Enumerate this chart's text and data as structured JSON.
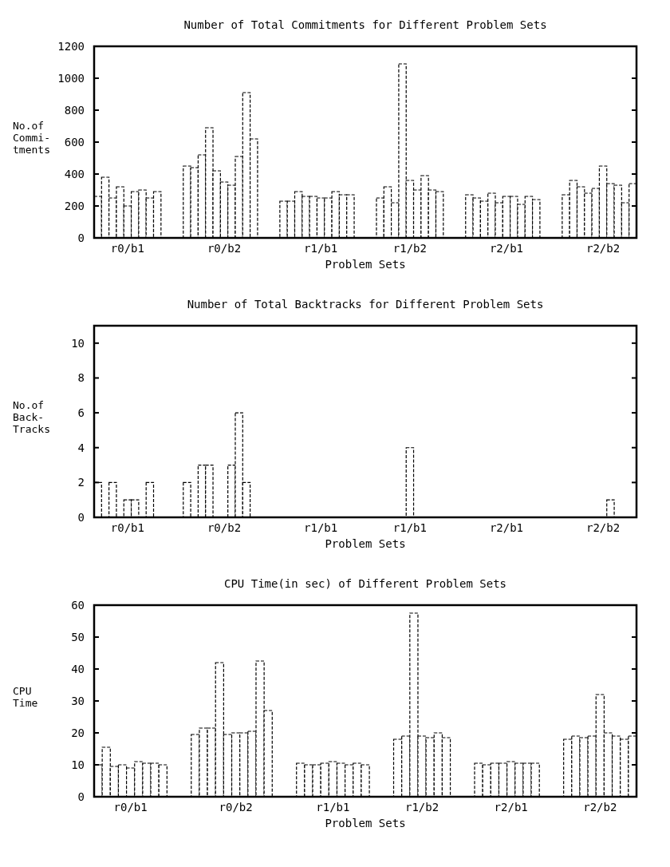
{
  "chart_data": [
    {
      "type": "bar",
      "title": "Number of Total Commitments for Different Problem Sets",
      "xlabel": "Problem Sets",
      "ylabel": "No.of\nCommi-\ntments",
      "color": "#000000",
      "ylim": [
        0,
        1200
      ],
      "yticks": [
        0,
        200,
        400,
        600,
        800,
        1000,
        1200
      ],
      "categories": [
        null,
        null,
        null,
        null,
        "r0/b1",
        null,
        null,
        null,
        null,
        null,
        null,
        null,
        null,
        null,
        null,
        null,
        null,
        "r0/b2",
        null,
        null,
        null,
        null,
        null,
        null,
        null,
        null,
        null,
        null,
        null,
        null,
        "r1/b1",
        null,
        null,
        null,
        null,
        null,
        null,
        null,
        null,
        null,
        null,
        null,
        "r1/b2",
        null,
        null,
        null,
        null,
        null,
        null,
        null,
        null,
        null,
        null,
        null,
        null,
        "r2/b1",
        null,
        null,
        null,
        null,
        null,
        null,
        null,
        null,
        null,
        null,
        null,
        null,
        "r2/b2",
        null,
        null,
        null,
        null
      ],
      "values": [
        260,
        380,
        250,
        320,
        200,
        290,
        300,
        250,
        290,
        null,
        null,
        null,
        450,
        440,
        520,
        690,
        420,
        350,
        330,
        510,
        910,
        620,
        null,
        null,
        null,
        230,
        230,
        290,
        260,
        260,
        250,
        250,
        290,
        270,
        270,
        null,
        null,
        null,
        250,
        320,
        220,
        1090,
        360,
        300,
        390,
        300,
        290,
        null,
        null,
        null,
        270,
        250,
        230,
        280,
        220,
        260,
        260,
        210,
        260,
        240,
        null,
        null,
        null,
        270,
        360,
        320,
        280,
        310,
        450,
        340,
        330,
        220,
        340
      ]
    },
    {
      "type": "bar",
      "title": "Number of Total Backtracks for Different Problem Sets",
      "xlabel": "Problem Sets",
      "ylabel": "No.of\nBack-\nTracks",
      "color": "#000000",
      "ylim": [
        0,
        11
      ],
      "yticks": [
        0,
        2,
        4,
        6,
        8,
        10
      ],
      "categories": [
        null,
        null,
        null,
        null,
        "r0/b1",
        null,
        null,
        null,
        null,
        null,
        null,
        null,
        null,
        null,
        null,
        null,
        null,
        "r0/b2",
        null,
        null,
        null,
        null,
        null,
        null,
        null,
        null,
        null,
        null,
        null,
        null,
        "r1/b1",
        null,
        null,
        null,
        null,
        null,
        null,
        null,
        null,
        null,
        null,
        null,
        "r1/b1",
        null,
        null,
        null,
        null,
        null,
        null,
        null,
        null,
        null,
        null,
        null,
        null,
        "r2/b1",
        null,
        null,
        null,
        null,
        null,
        null,
        null,
        null,
        null,
        null,
        null,
        null,
        "r2/b2",
        null,
        null,
        null,
        null
      ],
      "values": [
        2,
        0,
        2,
        0,
        1,
        1,
        0,
        2,
        0,
        null,
        null,
        null,
        2,
        0,
        3,
        3,
        0,
        0,
        3,
        6,
        2,
        0,
        null,
        null,
        null,
        0,
        0,
        0,
        0,
        0,
        0,
        0,
        0,
        0,
        0,
        null,
        null,
        null,
        0,
        0,
        0,
        0,
        4,
        0,
        0,
        0,
        0,
        null,
        null,
        null,
        0,
        0,
        0,
        0,
        0,
        0,
        0,
        0,
        0,
        0,
        null,
        null,
        null,
        0,
        0,
        0,
        0,
        0,
        0,
        1,
        0,
        0,
        0
      ]
    },
    {
      "type": "bar",
      "title": "CPU Time(in sec) of Different Problem Sets",
      "xlabel": "Problem Sets",
      "ylabel": "CPU\nTime",
      "color": "#000000",
      "ylim": [
        0,
        60
      ],
      "yticks": [
        0,
        10,
        20,
        30,
        40,
        50,
        60
      ],
      "categories": [
        null,
        null,
        null,
        null,
        "r0/b1",
        null,
        null,
        null,
        null,
        null,
        null,
        null,
        null,
        null,
        null,
        null,
        null,
        "r0/b2",
        null,
        null,
        null,
        null,
        null,
        null,
        null,
        null,
        null,
        null,
        null,
        "r1/b1",
        null,
        null,
        null,
        null,
        null,
        null,
        null,
        null,
        null,
        null,
        "r1/b2",
        null,
        null,
        null,
        null,
        null,
        null,
        null,
        null,
        null,
        null,
        "r2/b1",
        null,
        null,
        null,
        null,
        null,
        null,
        null,
        null,
        null,
        null,
        "r2/b2",
        null,
        null,
        null,
        null
      ],
      "values": [
        10,
        15.5,
        9.5,
        10,
        9,
        11,
        10.5,
        10.5,
        10,
        null,
        null,
        null,
        19.5,
        21.5,
        21.5,
        42,
        19.5,
        20,
        20,
        20.5,
        42.5,
        27,
        null,
        null,
        null,
        10.5,
        10,
        10,
        10.5,
        11,
        10.5,
        10,
        10.5,
        10,
        null,
        null,
        null,
        18,
        19,
        57.5,
        19,
        18.5,
        20,
        18.5,
        null,
        null,
        null,
        10.5,
        10,
        10.5,
        10.5,
        11,
        10.5,
        10.5,
        10.5,
        null,
        null,
        null,
        18,
        19,
        18.5,
        19,
        32,
        20,
        19,
        18,
        19
      ]
    }
  ]
}
